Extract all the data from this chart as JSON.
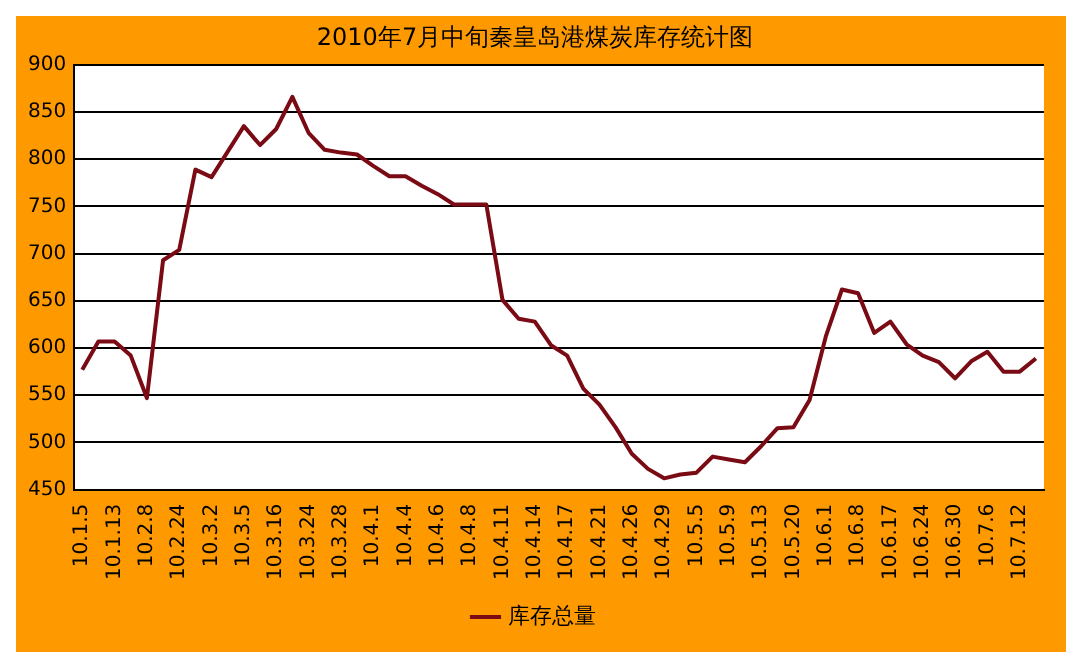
{
  "chart_data": {
    "type": "line",
    "title": "2010年7月中旬秦皇岛港煤炭库存统计图",
    "categories": [
      "10.1.5",
      null,
      "10.1.13",
      null,
      "10.2.8",
      null,
      "10.2.24",
      null,
      "10.3.2",
      null,
      "10.3.5",
      null,
      "10.3.16",
      null,
      "10.3.24",
      null,
      "10.3.28",
      null,
      "10.4.1",
      null,
      "10.4.4",
      null,
      "10.4.6",
      null,
      "10.4.8",
      null,
      "10.4.11",
      null,
      "10.4.14",
      null,
      "10.4.17",
      null,
      "10.4.21",
      null,
      "10.4.26",
      null,
      "10.4.29",
      null,
      "10.5.5",
      null,
      "10.5.9",
      null,
      "10.5.13",
      null,
      "10.5.20",
      null,
      "10.6.1",
      null,
      "10.6.8",
      null,
      "10.6.17",
      null,
      "10.6.24",
      null,
      "10.6.30",
      null,
      "10.7.6",
      null,
      "10.7.12",
      null
    ],
    "series": [
      {
        "name": "库存总量",
        "color": "#7a0a14",
        "values": [
          577,
          607,
          607,
          592,
          547,
          693,
          704,
          789,
          781,
          808,
          835,
          815,
          832,
          866,
          828,
          810,
          807,
          805,
          793,
          782,
          782,
          772,
          763,
          752,
          752,
          752,
          651,
          631,
          628,
          603,
          592,
          557,
          540,
          516,
          488,
          472,
          462,
          466,
          468,
          485,
          482,
          479,
          496,
          515,
          516,
          545,
          612,
          662,
          658,
          616,
          628,
          604,
          592,
          585,
          568,
          586,
          596,
          575,
          575,
          589
        ]
      }
    ],
    "ylim": [
      450,
      900
    ],
    "yticks": [
      450,
      500,
      550,
      600,
      650,
      700,
      750,
      800,
      850,
      900
    ],
    "grid": "y",
    "legend": "bottom",
    "marker": "none",
    "line_style": "solid"
  }
}
